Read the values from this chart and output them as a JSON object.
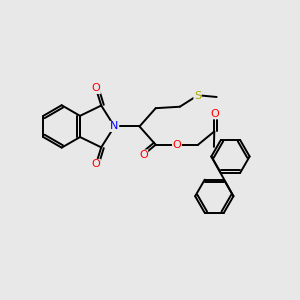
{
  "bg_color": "#e8e8e8",
  "bond_color": "#000000",
  "bond_lw": 1.4,
  "atom_colors": {
    "N": "#0000ff",
    "O": "#ff0000",
    "S": "#aaaa00"
  },
  "figsize": [
    3.0,
    3.0
  ],
  "dpi": 100
}
